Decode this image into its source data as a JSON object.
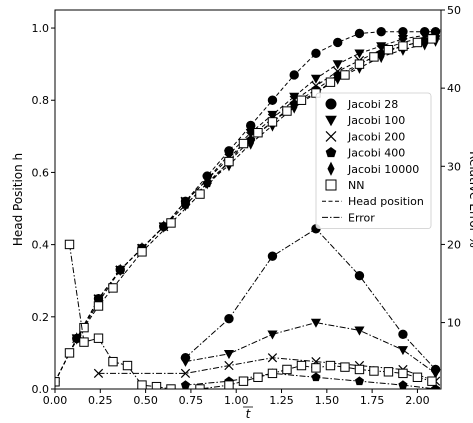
{
  "chart_data": {
    "type": "line",
    "xlabel": "t",
    "ylabel": "Head Position h",
    "y2label": "Relative Error %",
    "xlim": [
      0.0,
      2.13
    ],
    "ylim": [
      0.0,
      1.05
    ],
    "y2lim": [
      1.5,
      50
    ],
    "xticks": [
      0.0,
      0.25,
      0.5,
      0.75,
      1.0,
      1.25,
      1.5,
      1.75,
      2.0
    ],
    "xtick_labels": [
      "0.00",
      "0.25",
      "0.50",
      "0.75",
      "1.00",
      "1.25",
      "1.50",
      "1.75",
      "2.00"
    ],
    "yticks": [
      0.0,
      0.2,
      0.4,
      0.6,
      0.8,
      1.0
    ],
    "ytick_labels": [
      "0.0",
      "0.2",
      "0.4",
      "0.6",
      "0.8",
      "1.0"
    ],
    "y2ticks": [
      10,
      20,
      30,
      40,
      50
    ],
    "y2tick_labels": [
      "10",
      "20",
      "30",
      "40",
      "50"
    ],
    "grid": false,
    "legend_position": "center-right",
    "legend_line_entries": [
      {
        "label": "Head position",
        "dash": "dashed"
      },
      {
        "label": "Error",
        "dash": "dashdot"
      }
    ],
    "series": [
      {
        "name": "Jacobi 28",
        "marker": "circle",
        "head_x": [
          0.0,
          0.12,
          0.24,
          0.36,
          0.48,
          0.6,
          0.72,
          0.84,
          0.96,
          1.08,
          1.2,
          1.32,
          1.44,
          1.56,
          1.68,
          1.8,
          1.92,
          2.04,
          2.1
        ],
        "head_y": [
          0.02,
          0.14,
          0.25,
          0.33,
          0.39,
          0.45,
          0.52,
          0.59,
          0.66,
          0.73,
          0.8,
          0.87,
          0.93,
          0.96,
          0.985,
          0.99,
          0.99,
          0.99,
          0.99
        ],
        "err_x": [
          0.72,
          0.96,
          1.2,
          1.44,
          1.68,
          1.92,
          2.1
        ],
        "err_y": [
          5.5,
          10.5,
          18.5,
          22.0,
          16.0,
          8.5,
          4.0
        ]
      },
      {
        "name": "Jacobi 100",
        "marker": "triangle-down",
        "head_x": [
          0.0,
          0.12,
          0.24,
          0.36,
          0.48,
          0.6,
          0.72,
          0.84,
          0.96,
          1.08,
          1.2,
          1.32,
          1.44,
          1.56,
          1.68,
          1.8,
          1.92,
          2.04,
          2.1
        ],
        "head_y": [
          0.02,
          0.14,
          0.25,
          0.33,
          0.39,
          0.45,
          0.52,
          0.58,
          0.65,
          0.71,
          0.76,
          0.81,
          0.86,
          0.9,
          0.93,
          0.95,
          0.97,
          0.98,
          0.985
        ],
        "err_x": [
          0.72,
          0.96,
          1.2,
          1.44,
          1.68,
          1.92,
          2.1
        ],
        "err_y": [
          5.0,
          6.0,
          8.5,
          10.0,
          9.0,
          6.5,
          3.5
        ]
      },
      {
        "name": "Jacobi 200",
        "marker": "x",
        "head_x": [
          0.0,
          0.12,
          0.24,
          0.36,
          0.48,
          0.6,
          0.72,
          0.84,
          0.96,
          1.08,
          1.2,
          1.32,
          1.44,
          1.56,
          1.68,
          1.8,
          1.92,
          2.04,
          2.1
        ],
        "head_y": [
          0.02,
          0.14,
          0.25,
          0.33,
          0.39,
          0.45,
          0.52,
          0.58,
          0.64,
          0.7,
          0.75,
          0.8,
          0.84,
          0.88,
          0.91,
          0.94,
          0.96,
          0.975,
          0.98
        ],
        "err_x": [
          0.24,
          0.72,
          0.96,
          1.2,
          1.44,
          1.68,
          1.92,
          2.1
        ],
        "err_y": [
          3.5,
          3.5,
          4.5,
          5.5,
          5.0,
          4.5,
          4.0,
          2.5
        ]
      },
      {
        "name": "Jacobi 400",
        "marker": "pentagon",
        "head_x": [
          0.0,
          0.12,
          0.24,
          0.36,
          0.48,
          0.6,
          0.72,
          0.84,
          0.96,
          1.08,
          1.2,
          1.32,
          1.44,
          1.56,
          1.68,
          1.8,
          1.92,
          2.04,
          2.1
        ],
        "head_y": [
          0.02,
          0.14,
          0.25,
          0.33,
          0.39,
          0.45,
          0.51,
          0.57,
          0.63,
          0.69,
          0.74,
          0.79,
          0.83,
          0.87,
          0.9,
          0.93,
          0.95,
          0.965,
          0.975
        ],
        "err_x": [
          0.72,
          0.96,
          1.2,
          1.44,
          1.68,
          1.92,
          2.1
        ],
        "err_y": [
          2.0,
          2.5,
          3.5,
          3.0,
          2.5,
          2.0,
          1.5
        ]
      },
      {
        "name": "Jacobi 10000",
        "marker": "thin-diamond",
        "head_x": [
          0.0,
          0.12,
          0.24,
          0.36,
          0.48,
          0.6,
          0.72,
          0.84,
          0.96,
          1.08,
          1.2,
          1.32,
          1.44,
          1.56,
          1.68,
          1.8,
          1.92,
          2.04,
          2.1
        ],
        "head_y": [
          0.02,
          0.14,
          0.24,
          0.33,
          0.39,
          0.45,
          0.51,
          0.57,
          0.62,
          0.68,
          0.73,
          0.78,
          0.82,
          0.86,
          0.89,
          0.92,
          0.94,
          0.955,
          0.965
        ],
        "err_x": [],
        "err_y": []
      },
      {
        "name": "NN",
        "marker": "square",
        "head_x": [
          0.0,
          0.08,
          0.16,
          0.24,
          0.32,
          0.48,
          0.64,
          0.8,
          0.96,
          1.04,
          1.12,
          1.2,
          1.28,
          1.36,
          1.44,
          1.52,
          1.6,
          1.68,
          1.76,
          1.84,
          1.92,
          2.0,
          2.08
        ],
        "head_y": [
          0.02,
          0.1,
          0.17,
          0.23,
          0.28,
          0.38,
          0.46,
          0.54,
          0.63,
          0.68,
          0.71,
          0.74,
          0.77,
          0.8,
          0.82,
          0.85,
          0.87,
          0.9,
          0.92,
          0.94,
          0.95,
          0.96,
          0.97
        ],
        "err_x": [
          0.08,
          0.16,
          0.24,
          0.32,
          0.4,
          0.48,
          0.56,
          0.64,
          0.8,
          0.96,
          1.04,
          1.12,
          1.2,
          1.28,
          1.36,
          1.44,
          1.52,
          1.6,
          1.68,
          1.76,
          1.84,
          1.92,
          2.0,
          2.08
        ],
        "err_y": [
          20.0,
          7.5,
          8.0,
          5.0,
          4.5,
          2.0,
          1.8,
          1.5,
          1.5,
          2.0,
          2.5,
          3.0,
          3.5,
          4.0,
          4.5,
          4.2,
          4.5,
          4.3,
          4.0,
          3.8,
          3.7,
          3.5,
          3.0,
          2.5
        ]
      }
    ]
  }
}
